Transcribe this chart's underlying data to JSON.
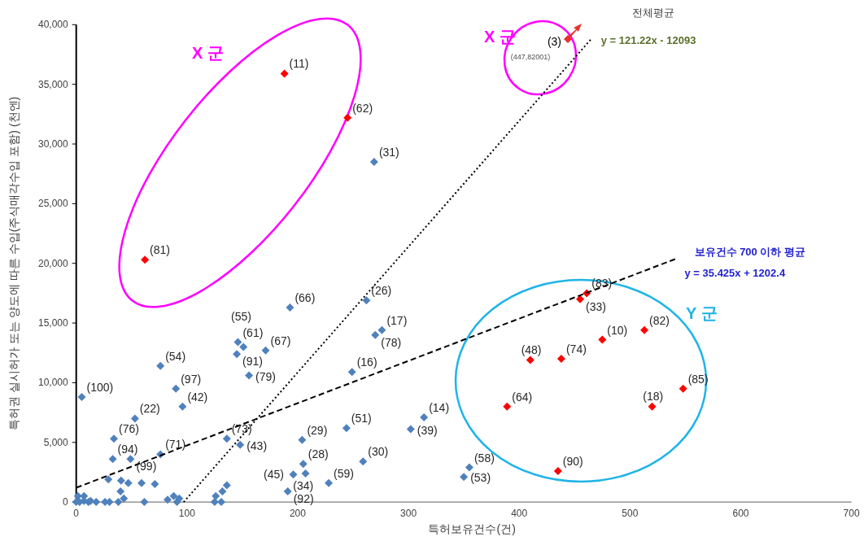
{
  "chart_data": {
    "type": "scatter",
    "xlabel": "특허보유건수(건)",
    "ylabel": "특허권 실시허가 또는 양도에 따른 수입(주식매각수입 포함) (천엔)",
    "xlim": [
      0,
      700
    ],
    "xticks": [
      0,
      100,
      200,
      300,
      400,
      500,
      600,
      700
    ],
    "ylim": [
      0,
      40000
    ],
    "yticks": [
      0,
      {
        "value": 5000,
        "label": "5,000"
      },
      {
        "value": 10000,
        "label": "10,000"
      },
      {
        "value": 15000,
        "label": "15,000"
      },
      {
        "value": 20000,
        "label": "20,000"
      },
      {
        "value": 25000,
        "label": "25,000"
      },
      {
        "value": 30000,
        "label": "30,000"
      },
      {
        "value": 35000,
        "label": "35,000"
      },
      {
        "value": 40000,
        "label": "40,000"
      }
    ],
    "grid": false,
    "series": [
      {
        "color": "#ff0000",
        "marker": "diamond",
        "x": [
          188,
          245,
          62,
          455,
          461,
          475,
          513,
          410,
          438,
          389,
          548,
          520,
          435
        ],
        "values": [
          35900,
          32200,
          20300,
          17000,
          17500,
          13600,
          14400,
          11900,
          12000,
          8000,
          9500,
          8000,
          2600
        ]
      },
      {
        "color": "#4f81bd",
        "marker": "diamond",
        "x": [
          269,
          5,
          53,
          34,
          33,
          49,
          76,
          76,
          90,
          96,
          146,
          151,
          145,
          171,
          156,
          193,
          136,
          148,
          204,
          205,
          196,
          207,
          191,
          228,
          262,
          270,
          276,
          249,
          244,
          259,
          302,
          314,
          355,
          350,
          0,
          1.5,
          7,
          3,
          7,
          11,
          13,
          18,
          26,
          30,
          29,
          38,
          40.5,
          40,
          43,
          47,
          59,
          61.5,
          71,
          82.5,
          88,
          91,
          93,
          125,
          126,
          131,
          132,
          136
        ],
        "values": [
          28500,
          8800,
          7000,
          5300,
          3600,
          3600,
          4000,
          11400,
          9500,
          8000,
          13400,
          13000,
          12400,
          12700,
          10600,
          16300,
          5300,
          4800,
          5200,
          3200,
          2300,
          2400,
          900,
          1600,
          16900,
          14000,
          14400,
          10900,
          6200,
          3400,
          6100,
          7100,
          2900,
          2100,
          0,
          500,
          500,
          0,
          100,
          0,
          100,
          0,
          0,
          0,
          1900,
          0,
          1800,
          900,
          300,
          1600,
          1600,
          0,
          1500,
          200,
          500,
          0,
          300,
          0,
          500,
          0,
          900,
          1400
        ]
      },
      {
        "type": "line",
        "name": "전체평균",
        "color": "#000000",
        "line_style": "dotted",
        "x": [
          97,
          465
        ],
        "values": [
          0,
          38800
        ]
      },
      {
        "type": "line",
        "name": "보유건수 700 이하 평균",
        "color": "#000000",
        "line_style": "dashed",
        "x": [
          0,
          542
        ],
        "values": [
          1200,
          20400
        ]
      }
    ],
    "annotations": [
      "X 군",
      "X 군",
      "Y 군",
      "(447,82001)",
      "(3)",
      {
        "text": "y = 121.22x - 12093",
        "x": 465,
        "y": 38800
      },
      {
        "text": "y = 35.425x + 1202.4",
        "x": 542,
        "y": 20400
      },
      {
        "text": "(11)",
        "x": 188,
        "y": 35900
      },
      {
        "text": "(62)",
        "x": 245,
        "y": 32200
      },
      {
        "text": "(81)",
        "x": 62,
        "y": 20300
      },
      {
        "text": "(33)",
        "x": 455,
        "y": 17000
      },
      {
        "text": "(83)",
        "x": 461,
        "y": 17500
      },
      {
        "text": "(10)",
        "x": 475,
        "y": 13600
      },
      {
        "text": "(82)",
        "x": 513,
        "y": 14400
      },
      {
        "text": "(48)",
        "x": 410,
        "y": 11900
      },
      {
        "text": "(74)",
        "x": 438,
        "y": 12000
      },
      {
        "text": "(64)",
        "x": 389,
        "y": 8000
      },
      {
        "text": "(85)",
        "x": 548,
        "y": 9500
      },
      {
        "text": "(18)",
        "x": 520,
        "y": 8000
      },
      {
        "text": "(90)",
        "x": 435,
        "y": 2600
      },
      {
        "text": "(31)",
        "x": 269,
        "y": 28500
      },
      {
        "text": "(100)",
        "x": 5,
        "y": 8800
      },
      {
        "text": "(22)",
        "x": 53,
        "y": 7000
      },
      {
        "text": "(76)",
        "x": 34,
        "y": 5300
      },
      {
        "text": "(94)",
        "x": 33,
        "y": 3600
      },
      {
        "text": "(99)",
        "x": 49,
        "y": 3600
      },
      {
        "text": "(71)",
        "x": 76,
        "y": 4000
      },
      {
        "text": "(54)",
        "x": 76,
        "y": 11400
      },
      {
        "text": "(97)",
        "x": 90,
        "y": 9500
      },
      {
        "text": "(42)",
        "x": 96,
        "y": 8000
      },
      {
        "text": "(61)",
        "x": 146,
        "y": 13400
      },
      {
        "text": "(55)",
        "x": 151,
        "y": 13000
      },
      {
        "text": "(91)",
        "x": 145,
        "y": 12400
      },
      {
        "text": "(67)",
        "x": 171,
        "y": 12700
      },
      {
        "text": "(79)",
        "x": 156,
        "y": 10600
      },
      {
        "text": "(66)",
        "x": 193,
        "y": 16300
      },
      {
        "text": "(73)",
        "x": 136,
        "y": 5300
      },
      {
        "text": "(43)",
        "x": 148,
        "y": 4800
      },
      {
        "text": "(29)",
        "x": 204,
        "y": 5200
      },
      {
        "text": "(28)",
        "x": 205,
        "y": 3200
      },
      {
        "text": "(45)",
        "x": 196,
        "y": 2300
      },
      {
        "text": "(34)",
        "x": 207,
        "y": 2400
      },
      {
        "text": "(92)",
        "x": 191,
        "y": 900
      },
      {
        "text": "(59)",
        "x": 228,
        "y": 1600
      },
      {
        "text": "(26)",
        "x": 262,
        "y": 16900
      },
      {
        "text": "(78)",
        "x": 270,
        "y": 14000
      },
      {
        "text": "(17)",
        "x": 276,
        "y": 14400
      },
      {
        "text": "(16)",
        "x": 249,
        "y": 10900
      },
      {
        "text": "(51)",
        "x": 244,
        "y": 6200
      },
      {
        "text": "(30)",
        "x": 259,
        "y": 3400
      },
      {
        "text": "(39)",
        "x": 302,
        "y": 6100
      },
      {
        "text": "(14)",
        "x": 314,
        "y": 7100
      },
      {
        "text": "(58)",
        "x": 355,
        "y": 2900
      },
      {
        "text": "(53)",
        "x": 350,
        "y": 2100
      }
    ]
  }
}
